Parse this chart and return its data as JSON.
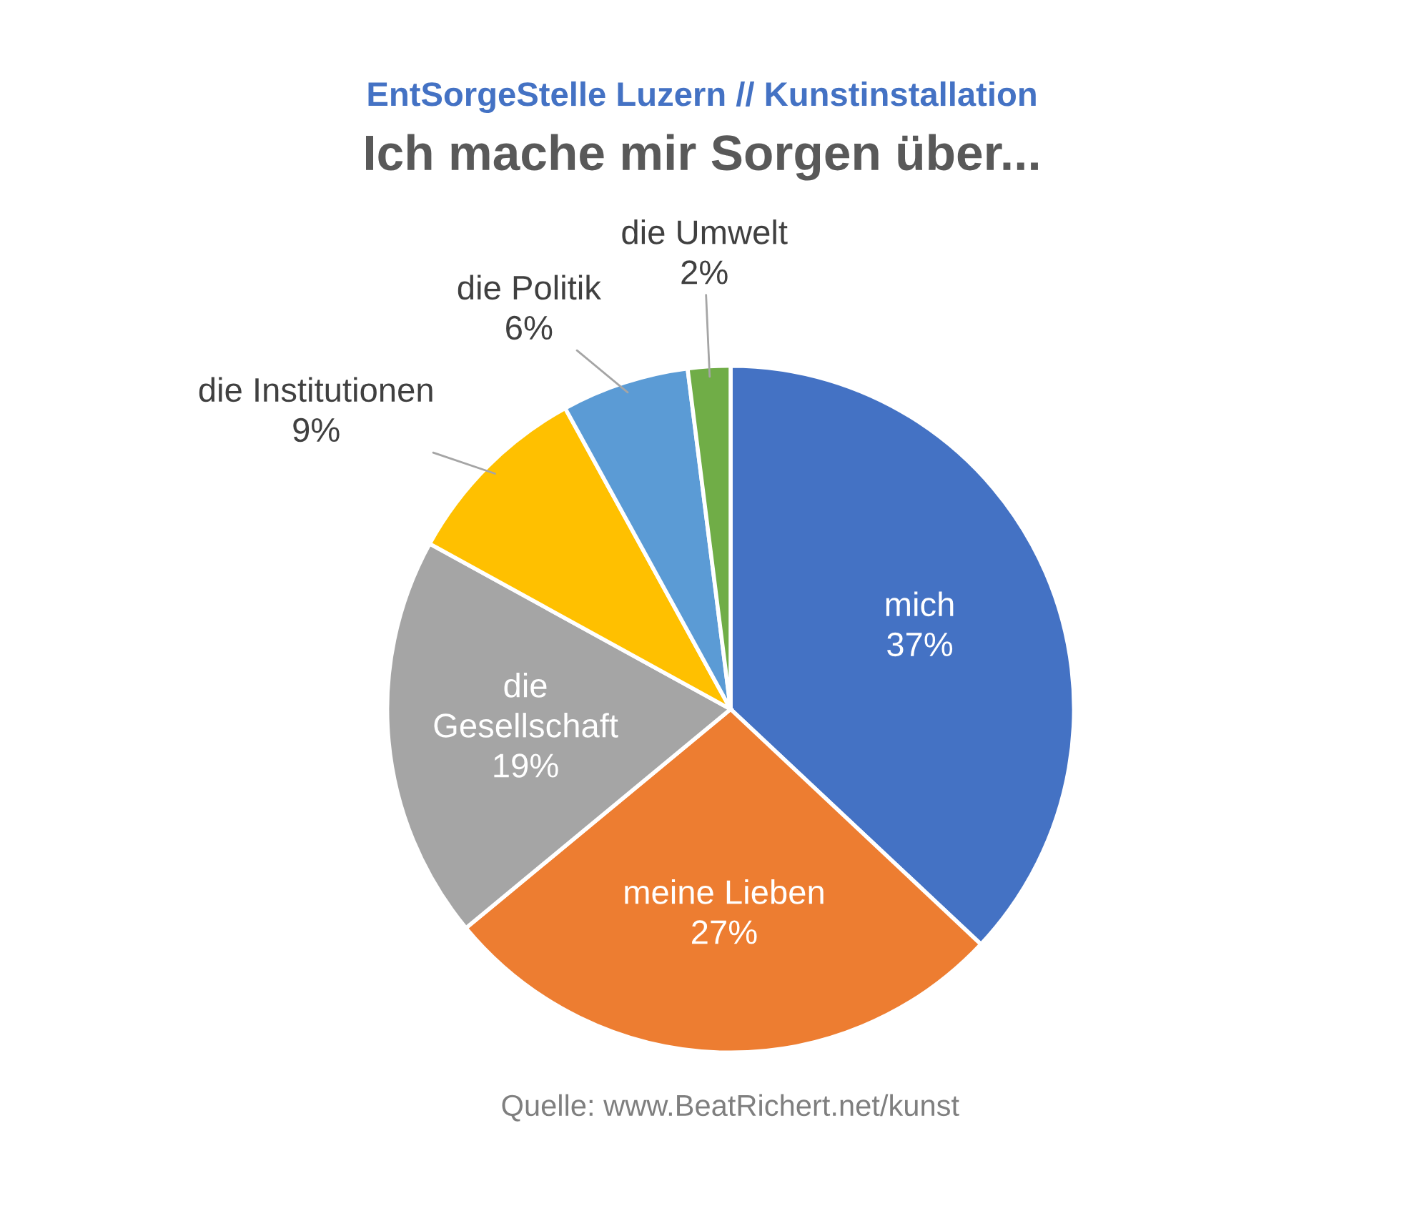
{
  "chart_data": {
    "type": "pie",
    "subtitle": "EntSorgeStelle Luzern // Kunstinstallation",
    "title": "Ich mache mir Sorgen über...",
    "categories": [
      "mich",
      "meine Lieben",
      "die\nGesellschaft",
      "die Institutionen",
      "die Politik",
      "die Umwelt"
    ],
    "values": [
      37,
      27,
      19,
      9,
      6,
      2
    ],
    "value_labels": [
      "37%",
      "27%",
      "19%",
      "9%",
      "6%",
      "2%"
    ],
    "colors": [
      "#4472c4",
      "#ed7d31",
      "#a5a5a5",
      "#ffc000",
      "#5b9bd5",
      "#70ad47"
    ],
    "annotations": [
      "Quelle: www.BeatRichert.net/kunst"
    ]
  }
}
